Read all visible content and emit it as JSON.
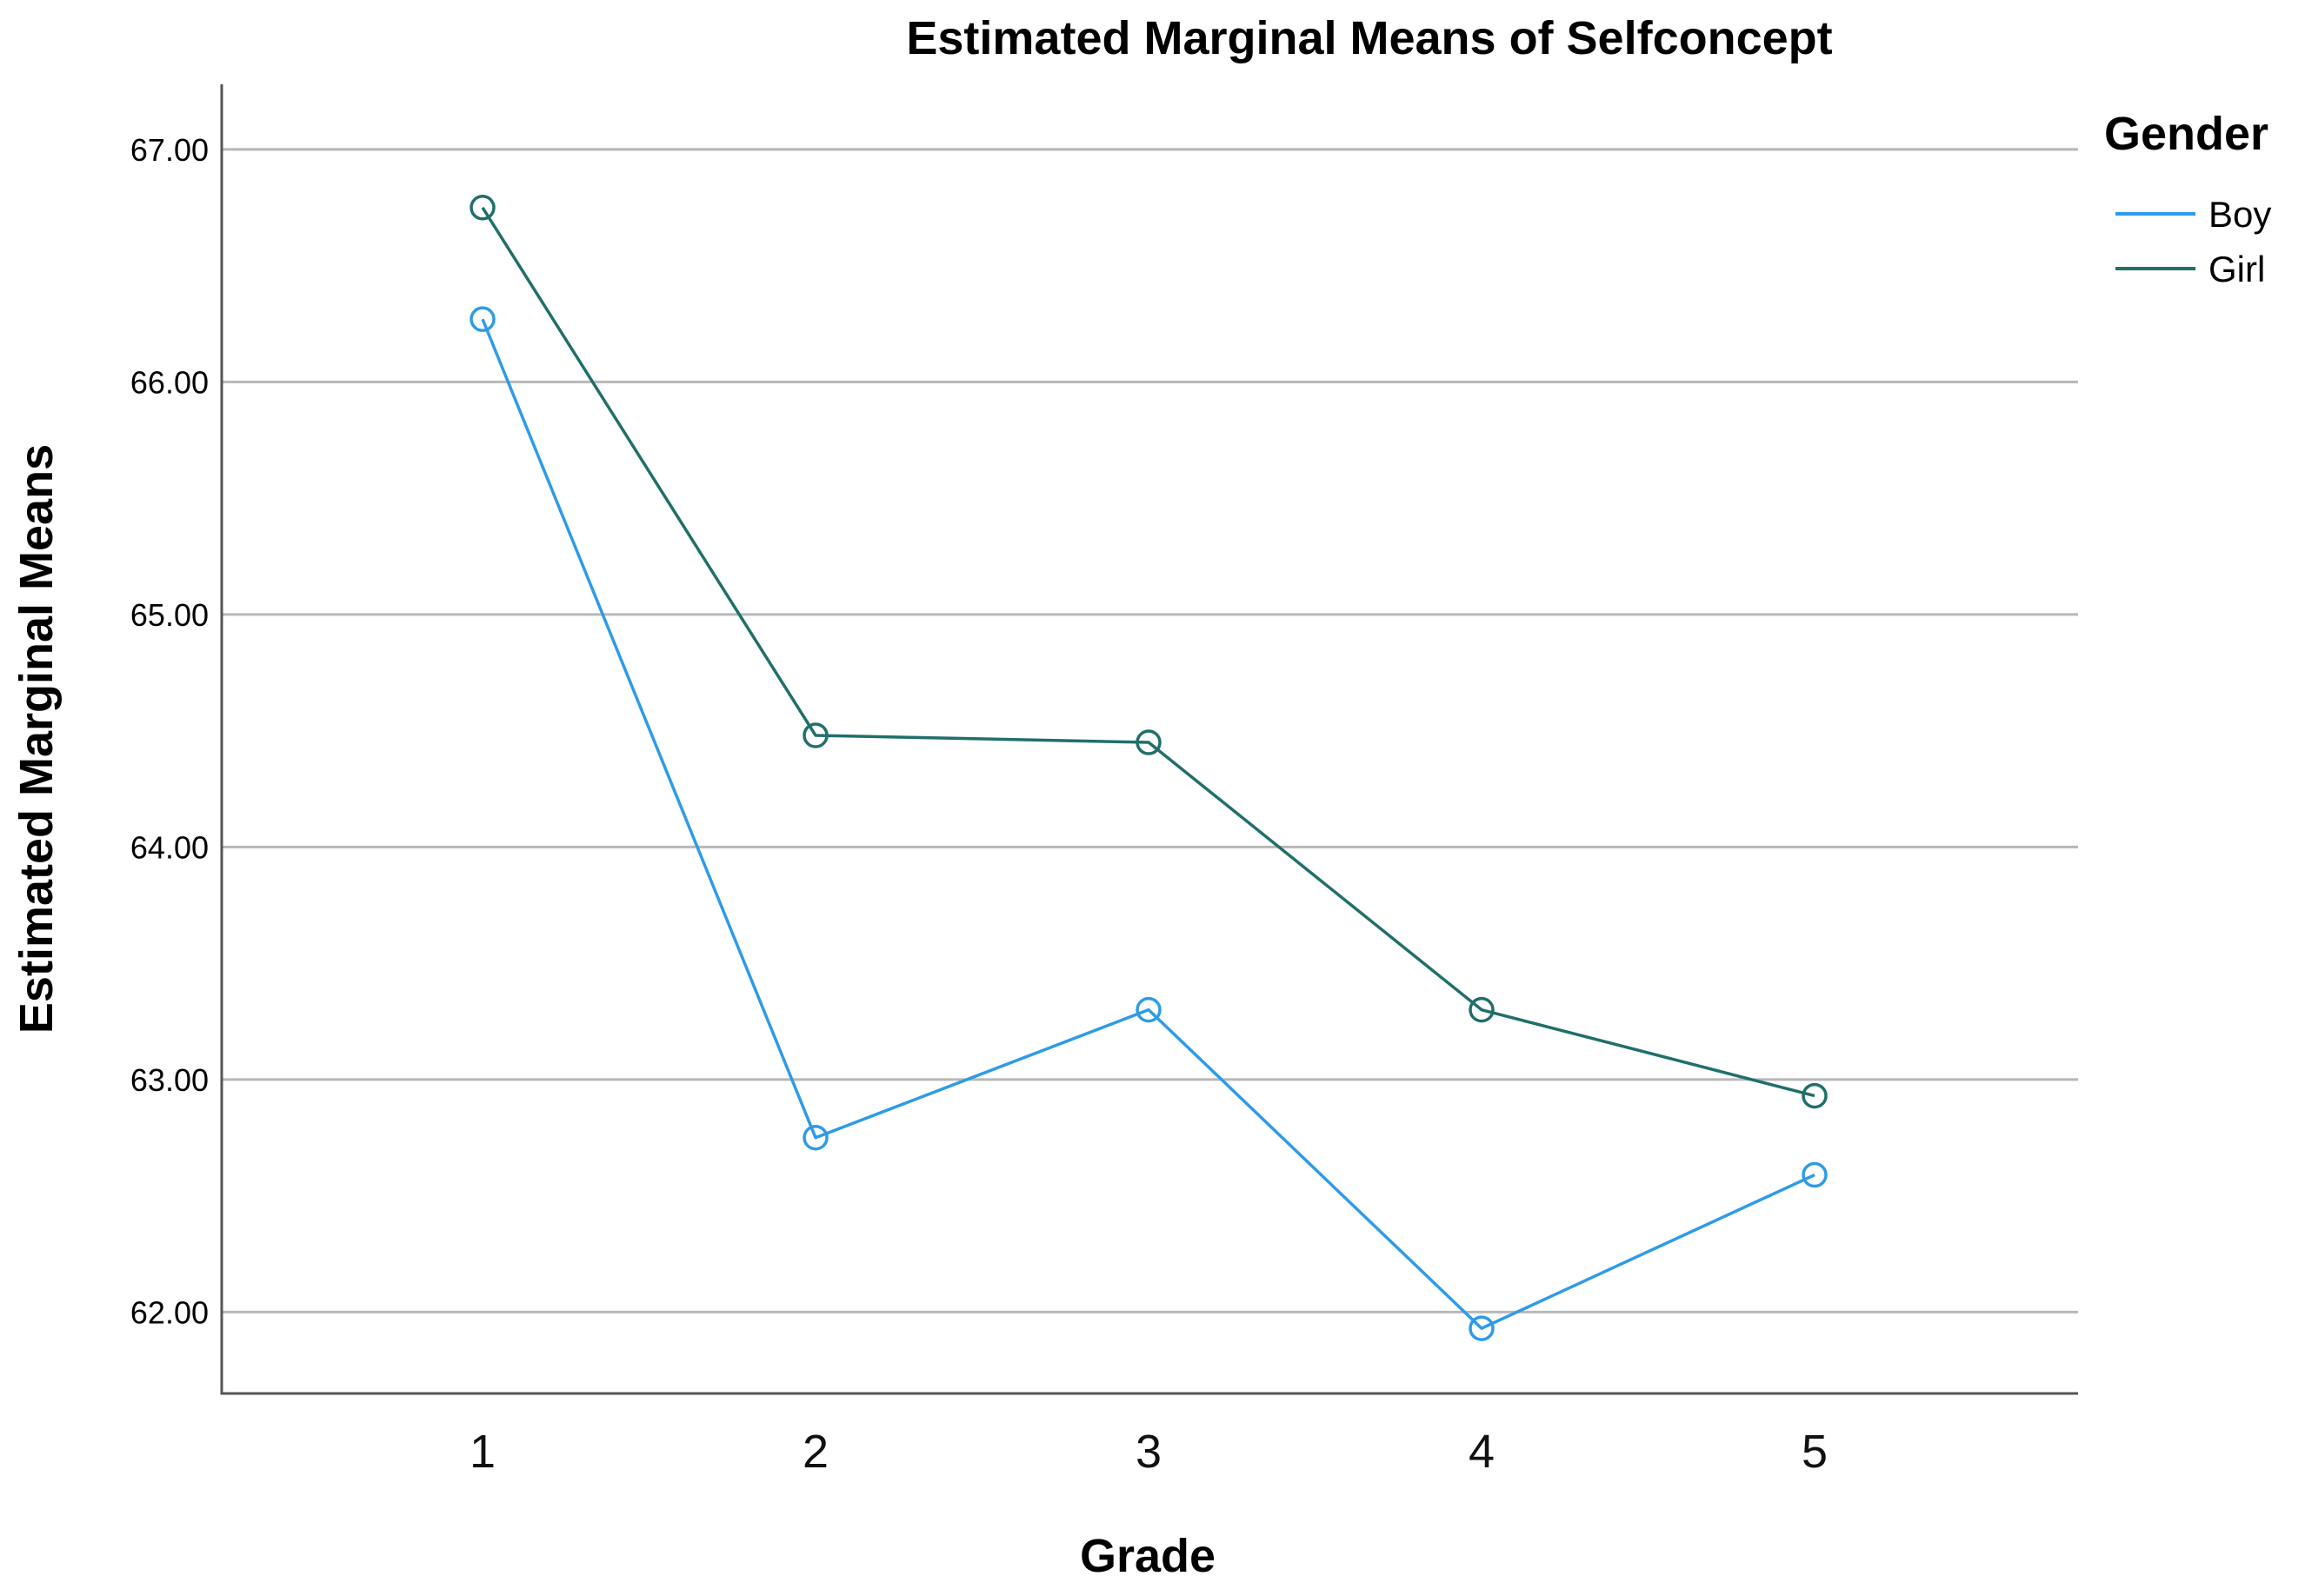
{
  "chart_data": {
    "type": "line",
    "title": "Estimated Marginal Means of Selfconcept",
    "xlabel": "Grade",
    "ylabel": "Estimated Marginal Means",
    "categories": [
      "1",
      "2",
      "3",
      "4",
      "5"
    ],
    "yticks": [
      "62.00",
      "63.00",
      "64.00",
      "65.00",
      "66.00",
      "67.00"
    ],
    "ylim": [
      61.65,
      67.28
    ],
    "grid": true,
    "legend": {
      "title": "Gender",
      "position": "top-right"
    },
    "series": [
      {
        "name": "Boy",
        "color": "#2e9be8",
        "values": [
          66.27,
          62.75,
          63.3,
          61.93,
          62.59
        ]
      },
      {
        "name": "Girl",
        "color": "#206f6a",
        "values": [
          66.75,
          64.48,
          64.45,
          63.3,
          62.93
        ]
      }
    ]
  }
}
